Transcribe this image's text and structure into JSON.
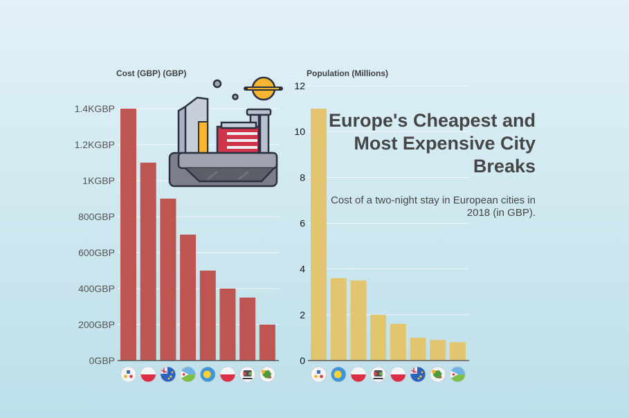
{
  "headline": "Europe's Cheapest and Most Expensive City Breaks",
  "subheadline": "Cost of a two-night stay in European cities in 2018 (in GBP).",
  "colors": {
    "cost_bar": "#bf5551",
    "population_bar": "#e2c56e",
    "grid": "#ffffff",
    "axis": "#5a5a5a"
  },
  "illustration": "factory-city-icon",
  "chart_data": [
    {
      "type": "bar",
      "title": "Cost (GBP) (GBP)",
      "ylim": [
        0,
        1400
      ],
      "yticks": [
        0,
        200,
        400,
        600,
        800,
        1000,
        1200,
        1400
      ],
      "ytick_labels": [
        "0GBP",
        "200GBP",
        "400GBP",
        "600GBP",
        "800GBP",
        "1KGBP",
        "1.2KGBP",
        "1.4KGBP"
      ],
      "categories": [
        "flag-1",
        "flag-2",
        "flag-3",
        "flag-4",
        "flag-5",
        "flag-6",
        "flag-7",
        "flag-8"
      ],
      "category_icons": [
        "white-crest-flag-icon",
        "red-white-flag-icon",
        "blue-ensign-flag-icon",
        "green-blue-star-flag-icon",
        "blue-yellow-dot-flag-icon",
        "red-white-flag-icon",
        "coat-of-arms-flag-icon",
        "green-map-flag-icon"
      ],
      "values": [
        1400,
        1100,
        900,
        700,
        500,
        400,
        350,
        200
      ],
      "grid": true
    },
    {
      "type": "bar",
      "title": "Population (Millions)",
      "ylim": [
        0,
        12
      ],
      "yticks": [
        0,
        2,
        4,
        6,
        8,
        10,
        12
      ],
      "ytick_labels": [
        "0",
        "2",
        "4",
        "6",
        "8",
        "10",
        "12"
      ],
      "categories": [
        "flag-1",
        "flag-2",
        "flag-3",
        "flag-4",
        "flag-5",
        "flag-6",
        "flag-7",
        "flag-8"
      ],
      "category_icons": [
        "white-crest-flag-icon",
        "blue-yellow-dot-flag-icon",
        "red-white-flag-icon",
        "coat-of-arms-flag-icon",
        "red-white-flag-icon",
        "blue-ensign-flag-icon",
        "green-map-flag-icon",
        "green-blue-star-flag-icon"
      ],
      "values": [
        11,
        3.6,
        3.5,
        2,
        1.6,
        1,
        0.9,
        0.8
      ],
      "grid": true
    }
  ]
}
